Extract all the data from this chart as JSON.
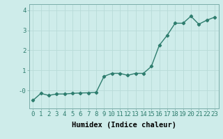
{
  "x": [
    0,
    1,
    2,
    3,
    4,
    5,
    6,
    7,
    8,
    9,
    10,
    11,
    12,
    13,
    14,
    15,
    16,
    17,
    18,
    19,
    20,
    21,
    22,
    23
  ],
  "y": [
    -0.5,
    -0.15,
    -0.25,
    -0.18,
    -0.18,
    -0.15,
    -0.13,
    -0.12,
    -0.1,
    0.7,
    0.85,
    0.85,
    0.75,
    0.85,
    0.85,
    1.2,
    2.25,
    2.75,
    3.35,
    3.35,
    3.7,
    3.3,
    3.5,
    3.65
  ],
  "line_color": "#2e7d6e",
  "marker": "D",
  "marker_size": 2.2,
  "bg_color": "#ceecea",
  "grid_color": "#b8dbd8",
  "xlabel": "Humidex (Indice chaleur)",
  "xlim": [
    -0.5,
    23.5
  ],
  "ylim": [
    -0.9,
    4.3
  ],
  "yticks": [
    0,
    1,
    2,
    3,
    4
  ],
  "ytick_labels": [
    "-0",
    "1",
    "2",
    "3",
    "4"
  ],
  "xtick_labels": [
    "0",
    "1",
    "2",
    "3",
    "4",
    "5",
    "6",
    "7",
    "8",
    "9",
    "10",
    "11",
    "12",
    "13",
    "14",
    "15",
    "16",
    "17",
    "18",
    "19",
    "20",
    "21",
    "22",
    "23"
  ],
  "xlabel_fontsize": 7.5,
  "tick_fontsize": 6.5,
  "line_width": 1.0
}
